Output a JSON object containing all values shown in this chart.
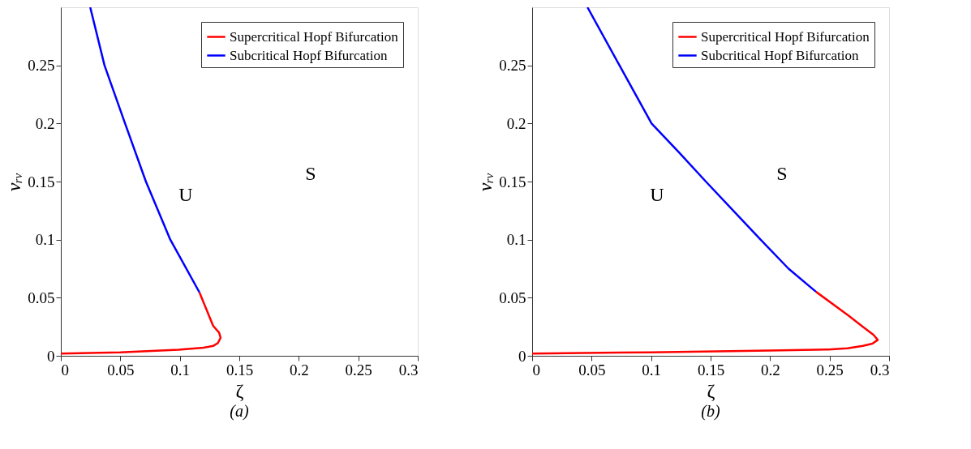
{
  "chart_data": [
    {
      "type": "line",
      "title": "(a)",
      "xlabel": "ζ",
      "ylabel": "vᵣᵥ",
      "xlim": [
        0,
        0.3
      ],
      "ylim": [
        0,
        0.3
      ],
      "xticks": [
        0,
        0.05,
        0.1,
        0.15,
        0.2,
        0.25,
        0.3
      ],
      "yticks": [
        0,
        0.05,
        0.1,
        0.15,
        0.2,
        0.25
      ],
      "grid": false,
      "legend": "top right",
      "line_style": "solid",
      "marker": "none",
      "series": [
        {
          "name": "Supercritical Hopf Bifurcation",
          "color": "#ff0000",
          "x": [
            0,
            0.05,
            0.099,
            0.12,
            0.128,
            0.132,
            0.1343,
            0.133,
            0.128,
            0.1165
          ],
          "values": [
            0.002,
            0.003,
            0.0052,
            0.007,
            0.0085,
            0.011,
            0.0155,
            0.02,
            0.0258,
            0.0546
          ]
        },
        {
          "name": "Subcritical Hopf Bifurcation",
          "color": "#0000ff",
          "x": [
            0.1165,
            0.092,
            0.0715,
            0.054,
            0.0367,
            0.0247
          ],
          "values": [
            0.0546,
            0.1,
            0.15,
            0.2,
            0.25,
            0.3
          ]
        }
      ],
      "annotations": [
        "U",
        "S"
      ]
    },
    {
      "type": "line",
      "title": "(b)",
      "xlabel": "ζ",
      "ylabel": "vᵣᵥ",
      "xlim": [
        0,
        0.3
      ],
      "ylim": [
        0,
        0.3
      ],
      "xticks": [
        0,
        0.05,
        0.1,
        0.15,
        0.2,
        0.25,
        0.3
      ],
      "yticks": [
        0,
        0.05,
        0.1,
        0.15,
        0.2,
        0.25
      ],
      "grid": false,
      "legend": "top right",
      "line_style": "solid",
      "marker": "none",
      "series": [
        {
          "name": "Supercritical Hopf Bifurcation",
          "color": "#ff0000",
          "x": [
            0,
            0.1,
            0.2,
            0.249,
            0.265,
            0.278,
            0.286,
            0.2905,
            0.287,
            0.278,
            0.266,
            0.2385
          ],
          "values": [
            0.002,
            0.003,
            0.0045,
            0.0054,
            0.0065,
            0.0085,
            0.0105,
            0.0137,
            0.018,
            0.025,
            0.0345,
            0.0552
          ]
        },
        {
          "name": "Subcritical Hopf Bifurcation",
          "color": "#0000ff",
          "x": [
            0.2385,
            0.2155,
            0.192,
            0.146,
            0.1235,
            0.1004,
            0.0734,
            0.0465
          ],
          "values": [
            0.0552,
            0.075,
            0.1,
            0.15,
            0.175,
            0.2,
            0.25,
            0.3
          ]
        }
      ],
      "annotations": [
        "U",
        "S"
      ]
    }
  ]
}
